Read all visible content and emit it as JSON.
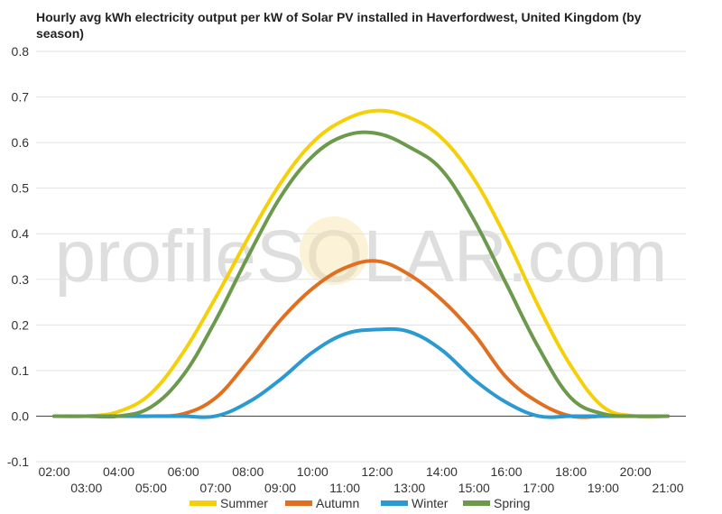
{
  "chart_data": {
    "type": "line",
    "title": "Hourly avg kWh electricity output per kW of Solar PV installed in Haverfordwest, United Kingdom (by season)",
    "xlabel": "",
    "ylabel": "",
    "ylim": [
      -0.1,
      0.8
    ],
    "yticks": [
      "0.8",
      "0.7",
      "0.6",
      "0.5",
      "0.4",
      "0.3",
      "0.2",
      "0.1",
      "0.0",
      "-0.1"
    ],
    "x_ticks_top": [
      "02:00",
      "04:00",
      "06:00",
      "08:00",
      "10:00",
      "12:00",
      "14:00",
      "16:00",
      "18:00",
      "20:00"
    ],
    "x_ticks_bottom": [
      "03:00",
      "05:00",
      "07:00",
      "09:00",
      "11:00",
      "13:00",
      "15:00",
      "17:00",
      "19:00",
      "21:00"
    ],
    "x": [
      2,
      3,
      4,
      5,
      6,
      7,
      8,
      9,
      10,
      11,
      12,
      13,
      14,
      15,
      16,
      17,
      18,
      19,
      20,
      21
    ],
    "series": [
      {
        "name": "Summer",
        "color": "#f5d00a",
        "values": [
          0.0,
          0.0,
          0.01,
          0.05,
          0.14,
          0.26,
          0.39,
          0.51,
          0.6,
          0.65,
          0.67,
          0.655,
          0.61,
          0.52,
          0.39,
          0.24,
          0.11,
          0.02,
          0.0,
          0.0
        ]
      },
      {
        "name": "Autumn",
        "color": "#e07020",
        "values": [
          0.0,
          0.0,
          0.0,
          0.0,
          0.005,
          0.04,
          0.12,
          0.21,
          0.28,
          0.325,
          0.34,
          0.31,
          0.255,
          0.18,
          0.085,
          0.03,
          0.0,
          0.0,
          0.0,
          0.0
        ]
      },
      {
        "name": "Winter",
        "color": "#2a9ad0",
        "values": [
          0.0,
          0.0,
          0.0,
          0.0,
          0.0,
          0.0,
          0.03,
          0.08,
          0.14,
          0.18,
          0.19,
          0.185,
          0.145,
          0.08,
          0.03,
          0.0,
          0.0,
          0.0,
          0.0,
          0.0
        ]
      },
      {
        "name": "Spring",
        "color": "#6c9a4c",
        "values": [
          0.0,
          0.0,
          0.0,
          0.02,
          0.09,
          0.21,
          0.35,
          0.48,
          0.57,
          0.615,
          0.62,
          0.59,
          0.54,
          0.43,
          0.29,
          0.15,
          0.04,
          0.005,
          0.0,
          0.0
        ]
      }
    ],
    "legend_position": "bottom",
    "grid": true
  },
  "watermark": "profileSOLAR.com"
}
